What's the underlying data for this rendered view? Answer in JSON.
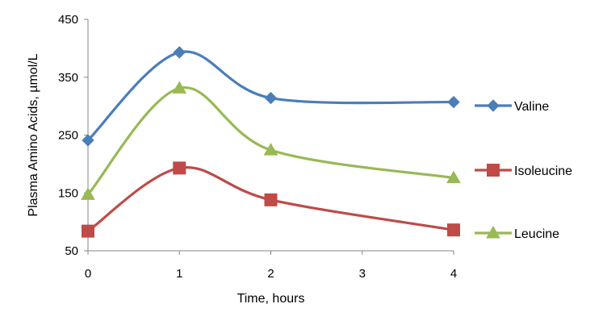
{
  "chart_data": {
    "type": "line",
    "title": "",
    "xlabel": "Time, hours",
    "ylabel": "Plasma Amino Acids, µmol/L",
    "x": [
      0,
      1,
      2,
      3,
      4
    ],
    "x_ticks": [
      "0",
      "1",
      "2",
      "3",
      "4"
    ],
    "y_ticks": [
      "450",
      "350",
      "250",
      "150",
      "50"
    ],
    "xlim": [
      0,
      4
    ],
    "ylim": [
      50,
      450
    ],
    "smooth": true,
    "grid": false,
    "legend_position": "right",
    "series": [
      {
        "name": "Valine",
        "color": "#4a7ebb",
        "marker": "diamond",
        "x": [
          0,
          1,
          2,
          4
        ],
        "values": [
          241,
          393,
          314,
          307
        ]
      },
      {
        "name": "Isoleucine",
        "color": "#be4b48",
        "marker": "square",
        "x": [
          0,
          1,
          2,
          4
        ],
        "values": [
          84,
          193,
          138,
          86
        ]
      },
      {
        "name": "Leucine",
        "color": "#98b954",
        "marker": "triangle",
        "x": [
          0,
          1,
          2,
          4
        ],
        "values": [
          147,
          331,
          224,
          176
        ]
      }
    ]
  }
}
